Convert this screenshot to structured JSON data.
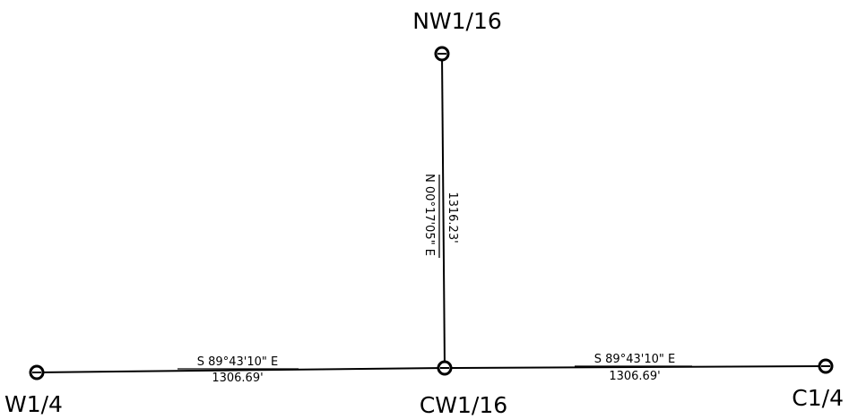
{
  "points": {
    "nw116": "NW1/16",
    "w14": "W1/4",
    "cw116": "CW1/16",
    "c14": "C1/4"
  },
  "lines": {
    "north": {
      "bearing": "N 00°17'05\" E",
      "distance": "1316.23'"
    },
    "west": {
      "bearing": "S 89°43'10\" E",
      "distance": "1306.69'"
    },
    "east": {
      "bearing": "S 89°43'10\" E",
      "distance": "1306.69'"
    }
  }
}
